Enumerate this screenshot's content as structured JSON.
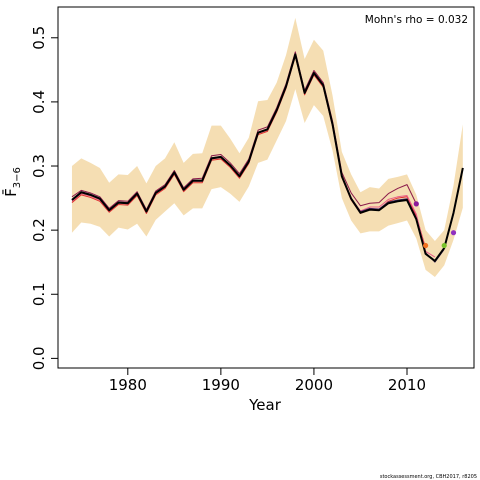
{
  "chart_data": {
    "type": "line",
    "xlabel": "Year",
    "ylabel": "F̄",
    "ylabel_sub": "3−6",
    "xlim": [
      1972.5,
      2017.2
    ],
    "ylim": [
      -0.015,
      0.548
    ],
    "x_ticks": [
      1980,
      1990,
      2000,
      2010
    ],
    "y_ticks": [
      0.0,
      0.1,
      0.2,
      0.3,
      0.4,
      0.5
    ],
    "y_tick_labels": [
      "0.0",
      "0.1",
      "0.2",
      "0.3",
      "0.4",
      "0.5"
    ],
    "annotation": "Mohn's rho = 0.032",
    "credit": "stockassessment.org, CBH2017, r8205",
    "colors": {
      "band": "#f5deb3",
      "current": "#000000",
      "peel_dark": "#8b1a4a",
      "peel_red": "#e03030",
      "peel_pink": "#e8608a",
      "points": [
        "#8b1a9a",
        "#f07020",
        "#7ac22a",
        "#9030c0"
      ]
    },
    "band": {
      "x": [
        1974,
        1975,
        1976,
        1977,
        1978,
        1979,
        1980,
        1981,
        1982,
        1983,
        1984,
        1985,
        1986,
        1987,
        1988,
        1989,
        1990,
        1991,
        1992,
        1993,
        1994,
        1995,
        1996,
        1997,
        1998,
        1999,
        2000,
        2001,
        2002,
        2003,
        2004,
        2005,
        2006,
        2007,
        2008,
        2009,
        2010,
        2011,
        2012,
        2013,
        2014,
        2015,
        2016
      ],
      "upper": [
        0.3,
        0.312,
        0.305,
        0.297,
        0.274,
        0.287,
        0.286,
        0.3,
        0.273,
        0.3,
        0.312,
        0.337,
        0.305,
        0.319,
        0.32,
        0.363,
        0.363,
        0.343,
        0.32,
        0.344,
        0.401,
        0.403,
        0.43,
        0.473,
        0.531,
        0.467,
        0.497,
        0.48,
        0.41,
        0.322,
        0.287,
        0.259,
        0.267,
        0.265,
        0.28,
        0.283,
        0.287,
        0.255,
        0.2,
        0.183,
        0.2,
        0.27,
        0.365
      ],
      "lower": [
        0.196,
        0.212,
        0.21,
        0.205,
        0.19,
        0.204,
        0.201,
        0.21,
        0.19,
        0.216,
        0.229,
        0.242,
        0.223,
        0.234,
        0.234,
        0.264,
        0.267,
        0.257,
        0.244,
        0.268,
        0.305,
        0.31,
        0.34,
        0.37,
        0.42,
        0.367,
        0.395,
        0.378,
        0.324,
        0.25,
        0.215,
        0.195,
        0.198,
        0.198,
        0.207,
        0.211,
        0.215,
        0.187,
        0.138,
        0.127,
        0.145,
        0.185,
        0.235
      ]
    },
    "series": [
      {
        "name": "",
        "color": "#000000",
        "width": 2,
        "x": [
          1974,
          1975,
          1976,
          1977,
          1978,
          1979,
          1980,
          1981,
          1982,
          1983,
          1984,
          1985,
          1986,
          1987,
          1988,
          1989,
          1990,
          1991,
          1992,
          1993,
          1994,
          1995,
          1996,
          1997,
          1998,
          1999,
          2000,
          2001,
          2002,
          2003,
          2004,
          2005,
          2006,
          2007,
          2008,
          2009,
          2010,
          2011,
          2012,
          2013,
          2014,
          2015,
          2016
        ],
        "values": [
          0.247,
          0.259,
          0.255,
          0.249,
          0.231,
          0.243,
          0.242,
          0.257,
          0.229,
          0.258,
          0.268,
          0.29,
          0.263,
          0.277,
          0.277,
          0.312,
          0.314,
          0.301,
          0.284,
          0.307,
          0.352,
          0.357,
          0.387,
          0.424,
          0.474,
          0.414,
          0.445,
          0.426,
          0.365,
          0.284,
          0.249,
          0.227,
          0.232,
          0.231,
          0.242,
          0.245,
          0.247,
          0.217,
          0.163,
          0.152,
          0.172,
          0.227,
          0.297
        ]
      },
      {
        "name": "",
        "color": "#8b1a4a",
        "width": 1,
        "x": [
          1974,
          1975,
          1976,
          1977,
          1978,
          1979,
          1980,
          1981,
          1982,
          1983,
          1984,
          1985,
          1986,
          1987,
          1988,
          1989,
          1990,
          1991,
          1992,
          1993,
          1994,
          1995,
          1996,
          1997,
          1998,
          1999,
          2000,
          2001,
          2002,
          2003,
          2004,
          2005,
          2006,
          2007,
          2008,
          2009,
          2010,
          2011
        ],
        "values": [
          0.252,
          0.262,
          0.258,
          0.252,
          0.234,
          0.246,
          0.245,
          0.26,
          0.232,
          0.261,
          0.271,
          0.293,
          0.266,
          0.28,
          0.281,
          0.316,
          0.318,
          0.305,
          0.288,
          0.311,
          0.356,
          0.361,
          0.391,
          0.428,
          0.478,
          0.418,
          0.449,
          0.43,
          0.37,
          0.29,
          0.258,
          0.238,
          0.242,
          0.243,
          0.257,
          0.265,
          0.271,
          0.241
        ]
      },
      {
        "name": "",
        "color": "#e03030",
        "width": 1,
        "x": [
          1974,
          1975,
          1976,
          1977,
          1978,
          1979,
          1980,
          1981,
          1982,
          1983,
          1984,
          1985,
          1986,
          1987,
          1988,
          1989,
          1990,
          1991,
          1992,
          1993,
          1994,
          1995,
          1996,
          1997,
          1998,
          1999,
          2000,
          2001,
          2002,
          2003,
          2004,
          2005,
          2006,
          2007,
          2008,
          2009,
          2010,
          2011,
          2012
        ],
        "values": [
          0.243,
          0.255,
          0.251,
          0.245,
          0.228,
          0.24,
          0.239,
          0.254,
          0.226,
          0.255,
          0.265,
          0.287,
          0.26,
          0.274,
          0.274,
          0.309,
          0.311,
          0.298,
          0.281,
          0.304,
          0.349,
          0.354,
          0.384,
          0.421,
          0.471,
          0.411,
          0.442,
          0.423,
          0.362,
          0.282,
          0.247,
          0.226,
          0.232,
          0.232,
          0.245,
          0.25,
          0.252,
          0.222,
          0.172
        ]
      },
      {
        "name": "",
        "color": "#e8608a",
        "width": 1,
        "x": [
          1974,
          1975,
          1976,
          1977,
          1978,
          1979,
          1980,
          1981,
          1982,
          1983,
          1984,
          1985,
          1986,
          1987,
          1988,
          1989,
          1990,
          1991,
          1992,
          1993,
          1994,
          1995,
          1996,
          1997,
          1998,
          1999,
          2000,
          2001,
          2002,
          2003,
          2004,
          2005,
          2006,
          2007,
          2008,
          2009,
          2010,
          2011,
          2012,
          2013
        ],
        "values": [
          0.245,
          0.257,
          0.253,
          0.247,
          0.23,
          0.242,
          0.241,
          0.256,
          0.228,
          0.257,
          0.267,
          0.289,
          0.262,
          0.276,
          0.276,
          0.311,
          0.313,
          0.3,
          0.283,
          0.306,
          0.351,
          0.356,
          0.386,
          0.423,
          0.473,
          0.413,
          0.444,
          0.425,
          0.364,
          0.284,
          0.25,
          0.23,
          0.236,
          0.236,
          0.248,
          0.252,
          0.254,
          0.225,
          0.167,
          0.158
        ]
      },
      {
        "name": "",
        "color": "#4a2a6a",
        "width": 1,
        "x": [
          1974,
          1975,
          1976,
          1977,
          1978,
          1979,
          1980,
          1981,
          1982,
          1983,
          1984,
          1985,
          1986,
          1987,
          1988,
          1989,
          1990,
          1991,
          1992,
          1993,
          1994,
          1995,
          1996,
          1997,
          1998,
          1999,
          2000,
          2001,
          2002,
          2003,
          2004,
          2005,
          2006,
          2007,
          2008,
          2009,
          2010,
          2011,
          2012,
          2013,
          2014
        ],
        "values": [
          0.248,
          0.26,
          0.256,
          0.25,
          0.232,
          0.244,
          0.243,
          0.258,
          0.23,
          0.259,
          0.269,
          0.291,
          0.264,
          0.278,
          0.278,
          0.313,
          0.315,
          0.302,
          0.285,
          0.308,
          0.353,
          0.358,
          0.388,
          0.425,
          0.475,
          0.415,
          0.446,
          0.427,
          0.366,
          0.285,
          0.25,
          0.229,
          0.234,
          0.233,
          0.244,
          0.247,
          0.249,
          0.219,
          0.165,
          0.15,
          0.17
        ]
      }
    ],
    "points": [
      {
        "x": 2011,
        "y": 0.241,
        "color": "#8b1a9a"
      },
      {
        "x": 2012,
        "y": 0.176,
        "color": "#f07020"
      },
      {
        "x": 2014,
        "y": 0.176,
        "color": "#7ac22a"
      },
      {
        "x": 2015,
        "y": 0.196,
        "color": "#9030c0"
      }
    ]
  }
}
